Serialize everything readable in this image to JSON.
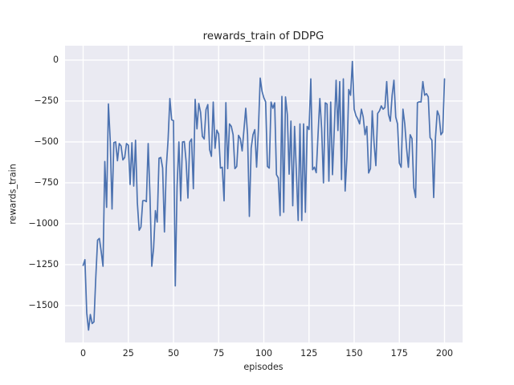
{
  "figure": {
    "title": "rewards_train of DDPG",
    "xlabel": "episodes",
    "ylabel": "rewards_train",
    "bg_color": "#ffffff",
    "axes_bg_color": "#EAEAF2",
    "grid_color": "#ffffff",
    "text_color": "#262626"
  },
  "chart_data": {
    "type": "line",
    "title": "rewards_train of DDPG",
    "xlabel": "episodes",
    "ylabel": "rewards_train",
    "grid": true,
    "legend": false,
    "line_color": "#4C72B0",
    "xlim": [
      -10,
      210
    ],
    "ylim": [
      -1726,
      88
    ],
    "xticks": [
      0,
      25,
      50,
      75,
      100,
      125,
      150,
      175,
      200
    ],
    "yticks": [
      0,
      -250,
      -500,
      -750,
      -1000,
      -1250,
      -1500
    ],
    "x_start": 0,
    "x_step": 1,
    "series": [
      {
        "name": "rewards_train",
        "color": "#4C72B0",
        "values": [
          -1255,
          -1220,
          -1545,
          -1650,
          -1555,
          -1610,
          -1600,
          -1330,
          -1100,
          -1090,
          -1170,
          -1260,
          -620,
          -900,
          -268,
          -490,
          -910,
          -505,
          -500,
          -615,
          -510,
          -525,
          -610,
          -595,
          -510,
          -520,
          -760,
          -505,
          -770,
          -490,
          -870,
          -1040,
          -1020,
          -860,
          -858,
          -865,
          -510,
          -830,
          -1260,
          -1150,
          -920,
          -990,
          -600,
          -595,
          -660,
          -1050,
          -660,
          -490,
          -235,
          -365,
          -370,
          -1380,
          -770,
          -500,
          -860,
          -500,
          -498,
          -620,
          -843,
          -500,
          -482,
          -786,
          -240,
          -420,
          -265,
          -320,
          -466,
          -482,
          -303,
          -272,
          -547,
          -588,
          -256,
          -539,
          -428,
          -452,
          -660,
          -655,
          -860,
          -260,
          -663,
          -390,
          -405,
          -456,
          -663,
          -650,
          -460,
          -480,
          -555,
          -425,
          -294,
          -456,
          -955,
          -538,
          -456,
          -425,
          -654,
          -424,
          -110,
          -190,
          -230,
          -255,
          -650,
          -660,
          -256,
          -294,
          -261,
          -700,
          -720,
          -950,
          -222,
          -930,
          -225,
          -332,
          -697,
          -373,
          -890,
          -405,
          -680,
          -980,
          -390,
          -980,
          -390,
          -930,
          -405,
          -424,
          -115,
          -670,
          -654,
          -688,
          -456,
          -235,
          -420,
          -750,
          -261,
          -269,
          -740,
          -256,
          -700,
          -420,
          -123,
          -430,
          -131,
          -730,
          -115,
          -800,
          -590,
          -180,
          -215,
          -8,
          -300,
          -340,
          -360,
          -390,
          -300,
          -348,
          -456,
          -405,
          -690,
          -663,
          -310,
          -505,
          -645,
          -326,
          -310,
          -280,
          -300,
          -290,
          -131,
          -332,
          -373,
          -215,
          -123,
          -348,
          -390,
          -630,
          -655,
          -300,
          -390,
          -538,
          -655,
          -456,
          -480,
          -780,
          -840,
          -260,
          -255,
          -256,
          -131,
          -215,
          -205,
          -225,
          -473,
          -490,
          -840,
          -473,
          -310,
          -340,
          -456,
          -440,
          -115
        ]
      }
    ]
  }
}
